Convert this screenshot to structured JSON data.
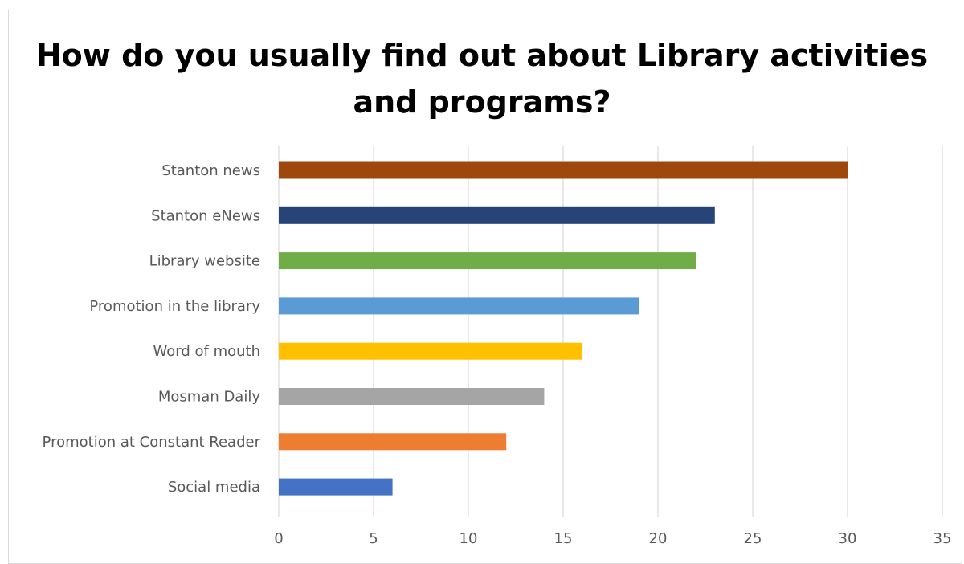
{
  "chart_data": {
    "type": "bar",
    "orientation": "horizontal",
    "title": "How do you usually find out about Library activities and programs?",
    "xlabel": "",
    "ylabel": "",
    "categories": [
      "Stanton news",
      "Stanton eNews",
      "Library website",
      "Promotion in the library",
      "Word of mouth",
      "Mosman Daily",
      "Promotion at Constant Reader",
      "Social media"
    ],
    "values": [
      30,
      23,
      22,
      19,
      16,
      14,
      12,
      6
    ],
    "colors": [
      "#9E480E",
      "#264478",
      "#70AD47",
      "#5B9BD5",
      "#FFC000",
      "#A5A5A5",
      "#ED7D31",
      "#4472C4"
    ],
    "xlim": [
      0,
      35
    ],
    "xticks": [
      0,
      5,
      10,
      15,
      20,
      25,
      30,
      35
    ],
    "grid": true,
    "legend": "none"
  }
}
